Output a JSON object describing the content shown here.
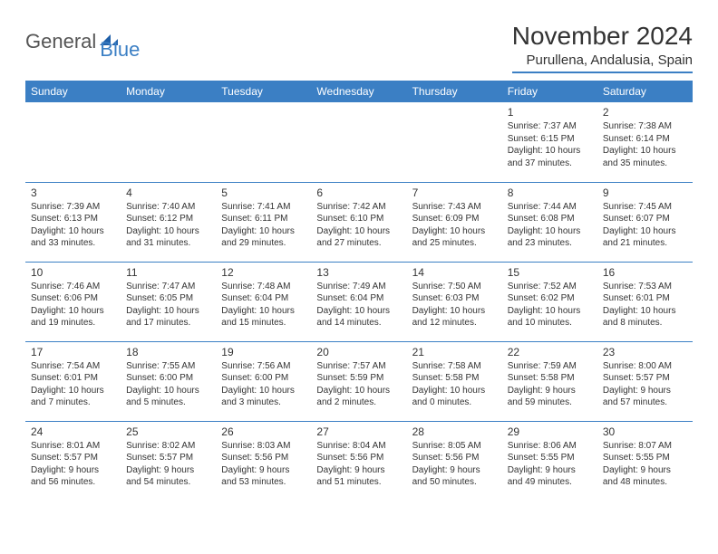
{
  "logo": {
    "text1": "General",
    "text2": "Blue"
  },
  "title": "November 2024",
  "location": "Purullena, Andalusia, Spain",
  "colors": {
    "accent": "#3b7fc4",
    "text": "#333333",
    "logo_gray": "#555555",
    "background": "#ffffff"
  },
  "weekdays": [
    "Sunday",
    "Monday",
    "Tuesday",
    "Wednesday",
    "Thursday",
    "Friday",
    "Saturday"
  ],
  "weeks": [
    [
      null,
      null,
      null,
      null,
      null,
      {
        "n": "1",
        "sr": "Sunrise: 7:37 AM",
        "ss": "Sunset: 6:15 PM",
        "d1": "Daylight: 10 hours",
        "d2": "and 37 minutes."
      },
      {
        "n": "2",
        "sr": "Sunrise: 7:38 AM",
        "ss": "Sunset: 6:14 PM",
        "d1": "Daylight: 10 hours",
        "d2": "and 35 minutes."
      }
    ],
    [
      {
        "n": "3",
        "sr": "Sunrise: 7:39 AM",
        "ss": "Sunset: 6:13 PM",
        "d1": "Daylight: 10 hours",
        "d2": "and 33 minutes."
      },
      {
        "n": "4",
        "sr": "Sunrise: 7:40 AM",
        "ss": "Sunset: 6:12 PM",
        "d1": "Daylight: 10 hours",
        "d2": "and 31 minutes."
      },
      {
        "n": "5",
        "sr": "Sunrise: 7:41 AM",
        "ss": "Sunset: 6:11 PM",
        "d1": "Daylight: 10 hours",
        "d2": "and 29 minutes."
      },
      {
        "n": "6",
        "sr": "Sunrise: 7:42 AM",
        "ss": "Sunset: 6:10 PM",
        "d1": "Daylight: 10 hours",
        "d2": "and 27 minutes."
      },
      {
        "n": "7",
        "sr": "Sunrise: 7:43 AM",
        "ss": "Sunset: 6:09 PM",
        "d1": "Daylight: 10 hours",
        "d2": "and 25 minutes."
      },
      {
        "n": "8",
        "sr": "Sunrise: 7:44 AM",
        "ss": "Sunset: 6:08 PM",
        "d1": "Daylight: 10 hours",
        "d2": "and 23 minutes."
      },
      {
        "n": "9",
        "sr": "Sunrise: 7:45 AM",
        "ss": "Sunset: 6:07 PM",
        "d1": "Daylight: 10 hours",
        "d2": "and 21 minutes."
      }
    ],
    [
      {
        "n": "10",
        "sr": "Sunrise: 7:46 AM",
        "ss": "Sunset: 6:06 PM",
        "d1": "Daylight: 10 hours",
        "d2": "and 19 minutes."
      },
      {
        "n": "11",
        "sr": "Sunrise: 7:47 AM",
        "ss": "Sunset: 6:05 PM",
        "d1": "Daylight: 10 hours",
        "d2": "and 17 minutes."
      },
      {
        "n": "12",
        "sr": "Sunrise: 7:48 AM",
        "ss": "Sunset: 6:04 PM",
        "d1": "Daylight: 10 hours",
        "d2": "and 15 minutes."
      },
      {
        "n": "13",
        "sr": "Sunrise: 7:49 AM",
        "ss": "Sunset: 6:04 PM",
        "d1": "Daylight: 10 hours",
        "d2": "and 14 minutes."
      },
      {
        "n": "14",
        "sr": "Sunrise: 7:50 AM",
        "ss": "Sunset: 6:03 PM",
        "d1": "Daylight: 10 hours",
        "d2": "and 12 minutes."
      },
      {
        "n": "15",
        "sr": "Sunrise: 7:52 AM",
        "ss": "Sunset: 6:02 PM",
        "d1": "Daylight: 10 hours",
        "d2": "and 10 minutes."
      },
      {
        "n": "16",
        "sr": "Sunrise: 7:53 AM",
        "ss": "Sunset: 6:01 PM",
        "d1": "Daylight: 10 hours",
        "d2": "and 8 minutes."
      }
    ],
    [
      {
        "n": "17",
        "sr": "Sunrise: 7:54 AM",
        "ss": "Sunset: 6:01 PM",
        "d1": "Daylight: 10 hours",
        "d2": "and 7 minutes."
      },
      {
        "n": "18",
        "sr": "Sunrise: 7:55 AM",
        "ss": "Sunset: 6:00 PM",
        "d1": "Daylight: 10 hours",
        "d2": "and 5 minutes."
      },
      {
        "n": "19",
        "sr": "Sunrise: 7:56 AM",
        "ss": "Sunset: 6:00 PM",
        "d1": "Daylight: 10 hours",
        "d2": "and 3 minutes."
      },
      {
        "n": "20",
        "sr": "Sunrise: 7:57 AM",
        "ss": "Sunset: 5:59 PM",
        "d1": "Daylight: 10 hours",
        "d2": "and 2 minutes."
      },
      {
        "n": "21",
        "sr": "Sunrise: 7:58 AM",
        "ss": "Sunset: 5:58 PM",
        "d1": "Daylight: 10 hours",
        "d2": "and 0 minutes."
      },
      {
        "n": "22",
        "sr": "Sunrise: 7:59 AM",
        "ss": "Sunset: 5:58 PM",
        "d1": "Daylight: 9 hours",
        "d2": "and 59 minutes."
      },
      {
        "n": "23",
        "sr": "Sunrise: 8:00 AM",
        "ss": "Sunset: 5:57 PM",
        "d1": "Daylight: 9 hours",
        "d2": "and 57 minutes."
      }
    ],
    [
      {
        "n": "24",
        "sr": "Sunrise: 8:01 AM",
        "ss": "Sunset: 5:57 PM",
        "d1": "Daylight: 9 hours",
        "d2": "and 56 minutes."
      },
      {
        "n": "25",
        "sr": "Sunrise: 8:02 AM",
        "ss": "Sunset: 5:57 PM",
        "d1": "Daylight: 9 hours",
        "d2": "and 54 minutes."
      },
      {
        "n": "26",
        "sr": "Sunrise: 8:03 AM",
        "ss": "Sunset: 5:56 PM",
        "d1": "Daylight: 9 hours",
        "d2": "and 53 minutes."
      },
      {
        "n": "27",
        "sr": "Sunrise: 8:04 AM",
        "ss": "Sunset: 5:56 PM",
        "d1": "Daylight: 9 hours",
        "d2": "and 51 minutes."
      },
      {
        "n": "28",
        "sr": "Sunrise: 8:05 AM",
        "ss": "Sunset: 5:56 PM",
        "d1": "Daylight: 9 hours",
        "d2": "and 50 minutes."
      },
      {
        "n": "29",
        "sr": "Sunrise: 8:06 AM",
        "ss": "Sunset: 5:55 PM",
        "d1": "Daylight: 9 hours",
        "d2": "and 49 minutes."
      },
      {
        "n": "30",
        "sr": "Sunrise: 8:07 AM",
        "ss": "Sunset: 5:55 PM",
        "d1": "Daylight: 9 hours",
        "d2": "and 48 minutes."
      }
    ]
  ]
}
